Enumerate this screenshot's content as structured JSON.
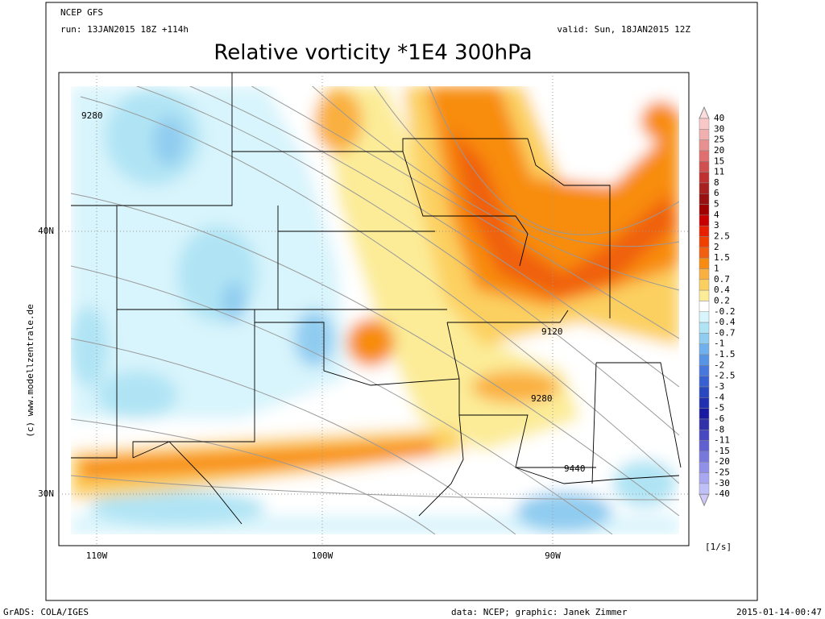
{
  "header": {
    "model": "NCEP GFS",
    "run": "run: 13JAN2015 18Z +114h",
    "valid": "valid: Sun, 18JAN2015 12Z",
    "title": "Relative vorticity *1E4 300hPa"
  },
  "map": {
    "lat_labels": [
      "40N",
      "30N"
    ],
    "lon_labels": [
      "110W",
      "100W",
      "90W"
    ],
    "contour_labels": [
      "9280",
      "9120",
      "9280",
      "9440"
    ],
    "credit": "(c) www.modellzentrale.de"
  },
  "legend": {
    "unit": "[1/s]",
    "labels": [
      "40",
      "30",
      "25",
      "20",
      "15",
      "11",
      "8",
      "6",
      "5",
      "4",
      "3",
      "2.5",
      "2",
      "1.5",
      "1",
      "0.7",
      "0.4",
      "0.2",
      "-0.2",
      "-0.4",
      "-0.7",
      "-1",
      "-1.5",
      "-2",
      "-2.5",
      "-3",
      "-4",
      "-5",
      "-6",
      "-8",
      "-11",
      "-15",
      "-20",
      "-25",
      "-30",
      "-40"
    ],
    "colors": [
      "#fcdcdc",
      "#f8c8c8",
      "#f0b0b0",
      "#e89090",
      "#e07070",
      "#d05050",
      "#c03030",
      "#a82020",
      "#981010",
      "#a00000",
      "#c80000",
      "#e82000",
      "#f04000",
      "#f06010",
      "#f88c10",
      "#fab040",
      "#fcd060",
      "#fcec98",
      "#ffffff",
      "#d8f4fc",
      "#b0e4f4",
      "#90ccf0",
      "#70b0ec",
      "#5894e4",
      "#4878dc",
      "#3860d0",
      "#2848c0",
      "#2030b0",
      "#1818a0",
      "#3030a8",
      "#4848c0",
      "#6060d0",
      "#7878dc",
      "#9090e8",
      "#a8a8f0",
      "#c0c0f8",
      "#d0c8f8"
    ]
  },
  "footer": {
    "software": "GrADS: COLA/IGES",
    "source": "data: NCEP; graphic: Janek Zimmer",
    "timestamp": "2015-01-14-00:47"
  }
}
